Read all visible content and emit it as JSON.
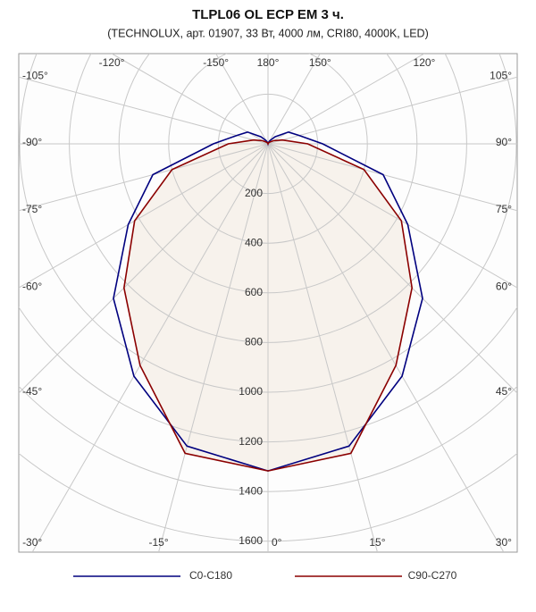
{
  "chart_data": {
    "type": "polar",
    "title": "TLPL06 OL ECP EM 3 ч.",
    "subtitle": "(TECHNOLUX, арт. 01907, 33 Вт, 4000 лм, CRI80, 4000K, LED)",
    "x": [
      -180,
      -165,
      -150,
      -135,
      -120,
      -105,
      -90,
      -75,
      -60,
      -45,
      -30,
      -15,
      0,
      15,
      30,
      45,
      60,
      75,
      90,
      105,
      120,
      135,
      150,
      165,
      180
    ],
    "series": [
      {
        "name": "C0-C180",
        "color": "#00007f",
        "values": [
          0,
          5,
          15,
          40,
          95,
          130,
          220,
          480,
          650,
          880,
          1080,
          1260,
          1317,
          1260,
          1080,
          880,
          650,
          480,
          220,
          130,
          95,
          40,
          15,
          5,
          0
        ]
      },
      {
        "name": "C90-C270",
        "color": "#8b0000",
        "fill": "#f7f2ec",
        "values": [
          0,
          0,
          5,
          10,
          25,
          60,
          160,
          400,
          620,
          820,
          1030,
          1290,
          1317,
          1290,
          1030,
          820,
          620,
          400,
          160,
          60,
          25,
          10,
          5,
          0,
          0
        ]
      }
    ],
    "ylim": [
      0,
      1600
    ],
    "yticks": [
      200,
      400,
      600,
      800,
      1000,
      1200,
      1400,
      1600
    ],
    "xticks": [
      {
        "value": -180,
        "label": "180°"
      },
      {
        "value": -150,
        "label": "-150°"
      },
      {
        "value": -120,
        "label": "-120°"
      },
      {
        "value": -105,
        "label": "-105°"
      },
      {
        "value": -90,
        "label": "-90°"
      },
      {
        "value": -75,
        "label": "-75°"
      },
      {
        "value": -60,
        "label": "-60°"
      },
      {
        "value": -45,
        "label": "-45°"
      },
      {
        "value": -30,
        "label": "-30°"
      },
      {
        "value": -15,
        "label": "-15°"
      },
      {
        "value": 0,
        "label": "0°"
      },
      {
        "value": 15,
        "label": "15°"
      },
      {
        "value": 30,
        "label": "30°"
      },
      {
        "value": 45,
        "label": "45°"
      },
      {
        "value": 60,
        "label": "60°"
      },
      {
        "value": 75,
        "label": "75°"
      },
      {
        "value": 90,
        "label": "90°"
      },
      {
        "value": 105,
        "label": "105°"
      },
      {
        "value": 120,
        "label": "120°"
      },
      {
        "value": 150,
        "label": "150°"
      }
    ],
    "grid": true
  }
}
